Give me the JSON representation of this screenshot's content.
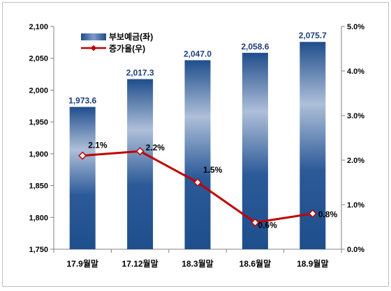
{
  "chart_data": {
    "type": "bar",
    "categories": [
      "17.9월말",
      "17.12월말",
      "18.3월말",
      "18.6월말",
      "18.9월말"
    ],
    "series": [
      {
        "name": "부보예금(좌)",
        "type": "bar",
        "axis": "left",
        "values": [
          1973.6,
          2017.3,
          2047.0,
          2058.6,
          2075.7
        ],
        "labels": [
          "1,973.6",
          "2,017.3",
          "2,047.0",
          "2,058.6",
          "2,075.7"
        ],
        "color": "#1f4e8c"
      },
      {
        "name": "증가율(우)",
        "type": "line",
        "axis": "right",
        "values": [
          2.1,
          2.2,
          1.5,
          0.6,
          0.8
        ],
        "labels": [
          "2.1%",
          "2.2%",
          "1.5%",
          "0.6%",
          "0.8%"
        ],
        "color": "#c00000"
      }
    ],
    "left_axis": {
      "ylim": [
        1750,
        2100
      ],
      "ticks": [
        "1,750",
        "1,800",
        "1,850",
        "1,900",
        "1,950",
        "2,000",
        "2,050",
        "2,100"
      ]
    },
    "right_axis": {
      "ylim": [
        0,
        5
      ],
      "ticks": [
        "0.0%",
        "1.0%",
        "2.0%",
        "3.0%",
        "4.0%",
        "5.0%"
      ]
    },
    "legend_position": "top-left",
    "grid": false
  }
}
